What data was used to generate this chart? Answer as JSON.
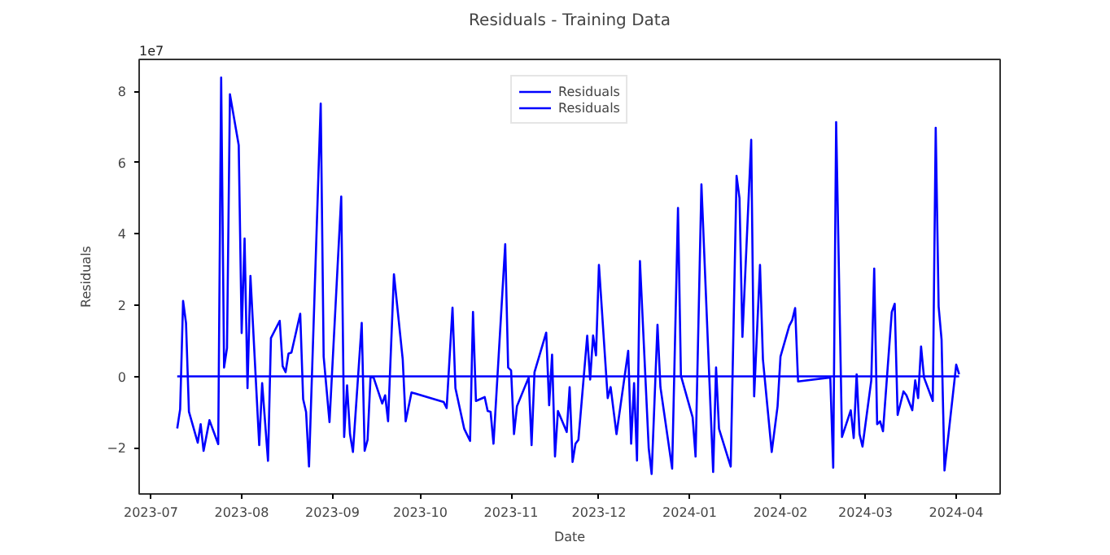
{
  "chart_data": {
    "type": "line",
    "title": "Residuals - Training Data",
    "xlabel": "Date",
    "ylabel": "Residuals",
    "annotations": [
      "1e7"
    ],
    "xlim": [
      "2023-06-27",
      "2024-04-16"
    ],
    "ylim": [
      -3.3,
      8.9
    ],
    "xticks": [
      {
        "value": "2023-07-01",
        "label": "2023-07"
      },
      {
        "value": "2023-08-01",
        "label": "2023-08"
      },
      {
        "value": "2023-09-01",
        "label": "2023-09"
      },
      {
        "value": "2023-10-01",
        "label": "2023-10"
      },
      {
        "value": "2023-11-01",
        "label": "2023-11"
      },
      {
        "value": "2023-12-01",
        "label": "2023-12"
      },
      {
        "value": "2024-01-01",
        "label": "2024-01"
      },
      {
        "value": "2024-02-01",
        "label": "2024-02"
      },
      {
        "value": "2024-03-01",
        "label": "2024-03"
      },
      {
        "value": "2024-04-01",
        "label": "2024-04"
      }
    ],
    "yticks": [
      -2,
      0,
      2,
      4,
      6,
      8
    ],
    "grid": false,
    "legend": "top",
    "marker": "none",
    "line_style": "solid",
    "series": [
      {
        "name": "Residuals",
        "color": "#0000ff",
        "x": [
          "2023-07-10",
          "2023-07-11",
          "2023-07-12",
          "2023-07-13",
          "2023-07-14",
          "2023-07-17",
          "2023-07-18",
          "2023-07-19",
          "2023-07-21",
          "2023-07-24",
          "2023-07-25",
          "2023-07-26",
          "2023-07-27",
          "2023-07-28",
          "2023-07-31",
          "2023-08-01",
          "2023-08-02",
          "2023-08-03",
          "2023-08-04",
          "2023-08-07",
          "2023-08-08",
          "2023-08-10",
          "2023-08-11",
          "2023-08-14",
          "2023-08-15",
          "2023-08-16",
          "2023-08-17",
          "2023-08-18",
          "2023-08-21",
          "2023-08-22",
          "2023-08-23",
          "2023-08-24",
          "2023-08-28",
          "2023-08-29",
          "2023-08-31",
          "2023-09-04",
          "2023-09-05",
          "2023-09-06",
          "2023-09-07",
          "2023-09-08",
          "2023-09-11",
          "2023-09-12",
          "2023-09-13",
          "2023-09-14",
          "2023-09-15",
          "2023-09-18",
          "2023-09-19",
          "2023-09-20",
          "2023-09-22",
          "2023-09-25",
          "2023-09-26",
          "2023-09-28",
          "2023-10-09",
          "2023-10-10",
          "2023-10-12",
          "2023-10-13",
          "2023-10-16",
          "2023-10-18",
          "2023-10-19",
          "2023-10-20",
          "2023-10-23",
          "2023-10-24",
          "2023-10-25",
          "2023-10-26",
          "2023-10-30",
          "2023-10-31",
          "2023-11-01",
          "2023-11-02",
          "2023-11-03",
          "2023-11-07",
          "2023-11-08",
          "2023-11-09",
          "2023-11-13",
          "2023-11-14",
          "2023-11-15",
          "2023-11-16",
          "2023-11-17",
          "2023-11-20",
          "2023-11-21",
          "2023-11-22",
          "2023-11-23",
          "2023-11-24",
          "2023-11-27",
          "2023-11-28",
          "2023-11-29",
          "2023-11-30",
          "2023-12-01",
          "2023-12-04",
          "2023-12-05",
          "2023-12-07",
          "2023-12-11",
          "2023-12-12",
          "2023-12-13",
          "2023-12-14",
          "2023-12-15",
          "2023-12-18",
          "2023-12-19",
          "2023-12-21",
          "2023-12-22",
          "2023-12-26",
          "2023-12-28",
          "2023-12-29",
          "2024-01-02",
          "2024-01-03",
          "2024-01-05",
          "2024-01-09",
          "2024-01-10",
          "2024-01-11",
          "2024-01-15",
          "2024-01-17",
          "2024-01-18",
          "2024-01-19",
          "2024-01-22",
          "2024-01-23",
          "2024-01-25",
          "2024-01-26",
          "2024-01-29",
          "2024-01-31",
          "2024-02-01",
          "2024-02-04",
          "2024-02-05",
          "2024-02-06",
          "2024-02-07",
          "2024-02-18",
          "2024-02-19",
          "2024-02-20",
          "2024-02-22",
          "2024-02-25",
          "2024-02-26",
          "2024-02-27",
          "2024-02-28",
          "2024-02-29",
          "2024-03-03",
          "2024-03-04",
          "2024-03-05",
          "2024-03-06",
          "2024-03-07",
          "2024-03-10",
          "2024-03-11",
          "2024-03-12",
          "2024-03-14",
          "2024-03-15",
          "2024-03-17",
          "2024-03-18",
          "2024-03-19",
          "2024-03-20",
          "2024-03-21",
          "2024-03-24",
          "2024-03-25",
          "2024-03-26",
          "2024-03-27",
          "2024-03-28",
          "2024-04-01",
          "2024-04-02"
        ],
        "values": [
          -1.46,
          -0.92,
          2.12,
          1.5,
          -0.99,
          -1.86,
          -1.34,
          -2.09,
          -1.23,
          -1.9,
          8.39,
          0.25,
          0.8,
          7.92,
          6.49,
          1.22,
          3.87,
          -0.33,
          2.82,
          -1.93,
          -0.19,
          -2.37,
          1.08,
          1.56,
          0.29,
          0.12,
          0.64,
          0.67,
          1.76,
          -0.64,
          -1.0,
          -2.53,
          7.66,
          0.56,
          -1.28,
          5.05,
          -1.7,
          -0.25,
          -1.62,
          -2.12,
          1.5,
          -2.09,
          -1.78,
          -0.03,
          -0.02,
          -0.76,
          -0.53,
          -1.26,
          2.87,
          0.48,
          -1.26,
          -0.45,
          -0.72,
          -0.89,
          1.93,
          -0.33,
          -1.47,
          -1.81,
          1.81,
          -0.69,
          -0.58,
          -0.97,
          -0.99,
          -1.89,
          3.71,
          0.25,
          0.17,
          -1.62,
          -0.84,
          -0.03,
          -1.93,
          0.12,
          1.23,
          -0.81,
          0.61,
          -2.25,
          -0.97,
          -1.56,
          -0.3,
          -2.4,
          -1.89,
          -1.78,
          1.14,
          -0.09,
          1.15,
          0.59,
          3.13,
          -0.61,
          -0.3,
          -1.62,
          0.72,
          -1.89,
          -0.19,
          -2.36,
          3.24,
          -2.01,
          -2.74,
          1.45,
          -0.3,
          -2.59,
          4.73,
          0.02,
          -1.15,
          -2.25,
          5.39,
          -2.68,
          0.25,
          -1.47,
          -2.53,
          5.63,
          5.0,
          1.11,
          6.64,
          -0.56,
          3.13,
          0.48,
          -2.12,
          -0.84,
          0.56,
          1.42,
          1.58,
          1.92,
          -0.14,
          -0.03,
          -2.56,
          7.14,
          -1.7,
          -0.95,
          -1.73,
          0.06,
          -1.62,
          -1.97,
          -0.11,
          3.03,
          -1.34,
          -1.26,
          -1.54,
          1.81,
          2.04,
          -1.08,
          -0.42,
          -0.53,
          -0.95,
          -0.11,
          -0.61,
          0.84,
          -0.03,
          -0.69,
          6.98,
          1.96,
          1.03,
          -2.64,
          0.33,
          0.06
        ]
      },
      {
        "name": "Residuals",
        "color": "#0000ff",
        "x": [
          "2023-07-10",
          "2024-04-02"
        ],
        "values": [
          0,
          0
        ]
      }
    ]
  }
}
